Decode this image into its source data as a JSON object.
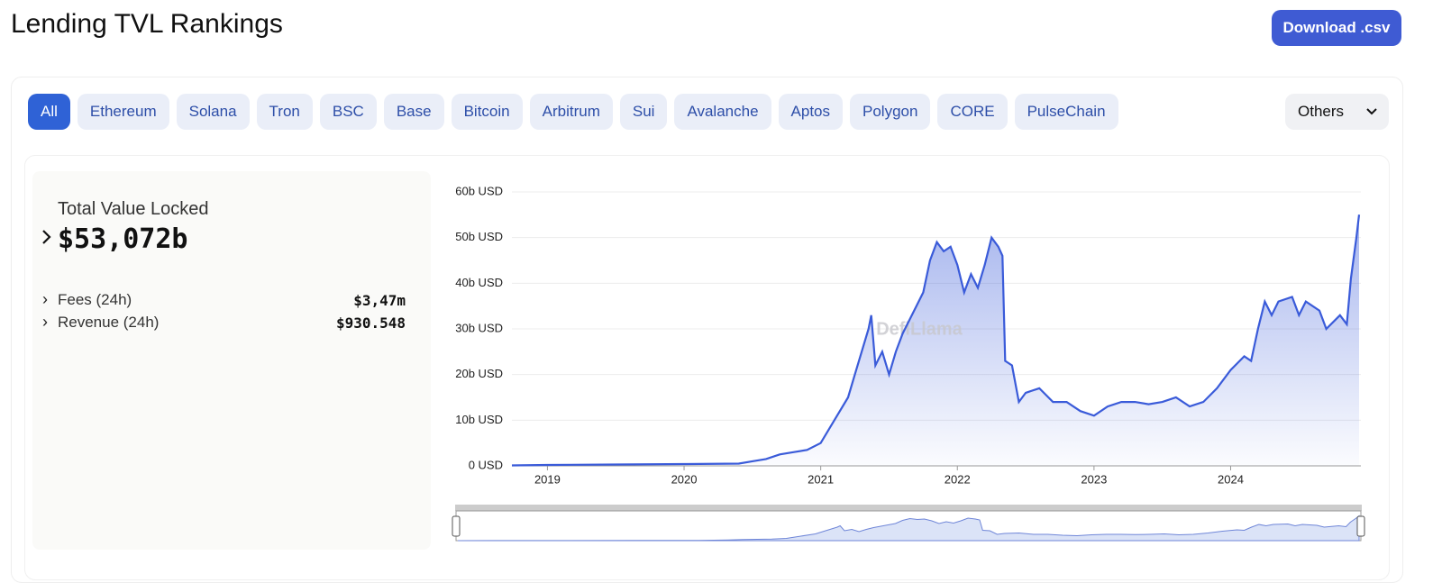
{
  "header": {
    "title": "Lending TVL Rankings",
    "download": "Download .csv"
  },
  "tabs": [
    "All",
    "Ethereum",
    "Solana",
    "Tron",
    "BSC",
    "Base",
    "Bitcoin",
    "Arbitrum",
    "Sui",
    "Avalanche",
    "Aptos",
    "Polygon",
    "CORE",
    "PulseChain"
  ],
  "selected_tab": 0,
  "others": "Others",
  "stats": {
    "tvl_label": "Total Value Locked",
    "tvl_value": "$53,072b",
    "rows": [
      {
        "label": "Fees (24h)",
        "value": "$3,47m"
      },
      {
        "label": "Revenue (24h)",
        "value": "$930.548"
      }
    ]
  },
  "chart_data": {
    "type": "line",
    "watermark": "DefiLlama",
    "color": "#3a5bd9",
    "grid": true,
    "x": [
      2018.74,
      2019.0,
      2019.5,
      2020.0,
      2020.4,
      2020.5,
      2020.6,
      2020.7,
      2020.8,
      2020.9,
      2021.0,
      2021.1,
      2021.2,
      2021.25,
      2021.3,
      2021.35,
      2021.37,
      2021.4,
      2021.45,
      2021.5,
      2021.55,
      2021.6,
      2021.7,
      2021.75,
      2021.8,
      2021.85,
      2021.9,
      2021.95,
      2022.0,
      2022.05,
      2022.1,
      2022.15,
      2022.2,
      2022.25,
      2022.3,
      2022.33,
      2022.35,
      2022.4,
      2022.45,
      2022.5,
      2022.6,
      2022.7,
      2022.8,
      2022.9,
      2023.0,
      2023.1,
      2023.2,
      2023.3,
      2023.4,
      2023.5,
      2023.6,
      2023.7,
      2023.8,
      2023.9,
      2024.0,
      2024.1,
      2024.15,
      2024.2,
      2024.25,
      2024.3,
      2024.35,
      2024.45,
      2024.5,
      2024.55,
      2024.65,
      2024.7,
      2024.8,
      2024.85,
      2024.88,
      2024.92,
      2024.94
    ],
    "values": [
      0.1,
      0.2,
      0.3,
      0.4,
      0.5,
      1.0,
      1.5,
      2.5,
      3,
      3.5,
      5,
      10,
      15,
      20,
      25,
      30,
      33,
      22,
      25,
      20,
      25,
      29,
      35,
      38,
      45,
      49,
      47,
      48,
      44,
      38,
      42,
      39,
      44,
      50,
      48,
      46,
      23,
      22,
      14,
      16,
      17,
      14,
      14,
      12,
      11,
      13,
      14,
      14,
      13.5,
      14,
      15,
      13,
      14,
      17,
      21,
      24,
      23,
      30,
      36,
      33,
      36,
      37,
      33,
      36,
      34,
      30,
      33,
      31,
      41,
      50,
      55
    ],
    "xlim": [
      2018.74,
      2024.94
    ],
    "xticks": [
      2019,
      2020,
      2021,
      2022,
      2023,
      2024
    ],
    "ylim": [
      0,
      60
    ],
    "yticks": [
      {
        "value": 0,
        "label": "0 USD"
      },
      {
        "value": 10,
        "label": "10b USD"
      },
      {
        "value": 20,
        "label": "20b USD"
      },
      {
        "value": 30,
        "label": "30b USD"
      },
      {
        "value": 40,
        "label": "40b USD"
      },
      {
        "value": 50,
        "label": "50b USD"
      },
      {
        "value": 60,
        "label": "60b USD"
      }
    ]
  }
}
